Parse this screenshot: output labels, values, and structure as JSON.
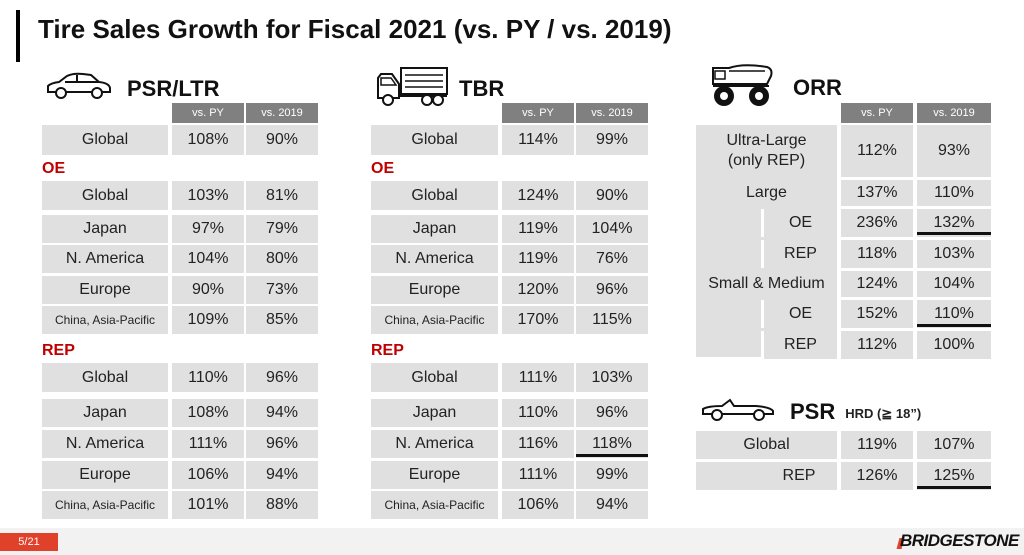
{
  "title": "Tire Sales Growth for Fiscal 2021 (vs. PY / vs. 2019)",
  "headers": {
    "vs_py": "vs. PY",
    "vs_2019": "vs. 2019"
  },
  "groups": {
    "oe": "OE",
    "rep": "REP"
  },
  "psr_ltr": {
    "title": "PSR/LTR",
    "global": [
      "Global",
      "108%",
      "90%"
    ],
    "oe": [
      [
        "Global",
        "103%",
        "81%"
      ],
      [
        "Japan",
        "97%",
        "79%"
      ],
      [
        "N. America",
        "104%",
        "80%"
      ],
      [
        "Europe",
        "90%",
        "73%"
      ],
      [
        "China, Asia-Pacific",
        "109%",
        "85%"
      ]
    ],
    "rep": [
      [
        "Global",
        "110%",
        "96%"
      ],
      [
        "Japan",
        "108%",
        "94%"
      ],
      [
        "N. America",
        "111%",
        "96%"
      ],
      [
        "Europe",
        "106%",
        "94%"
      ],
      [
        "China, Asia-Pacific",
        "101%",
        "88%"
      ]
    ]
  },
  "tbr": {
    "title": "TBR",
    "global": [
      "Global",
      "114%",
      "99%"
    ],
    "oe": [
      [
        "Global",
        "124%",
        "90%"
      ],
      [
        "Japan",
        "119%",
        "104%"
      ],
      [
        "N. America",
        "119%",
        "76%"
      ],
      [
        "Europe",
        "120%",
        "96%"
      ],
      [
        "China, Asia-Pacific",
        "170%",
        "115%"
      ]
    ],
    "rep": [
      [
        "Global",
        "111%",
        "103%"
      ],
      [
        "Japan",
        "110%",
        "96%"
      ],
      [
        "N. America",
        "116%",
        "118%"
      ],
      [
        "Europe",
        "111%",
        "99%"
      ],
      [
        "China, Asia-Pacific",
        "106%",
        "94%"
      ]
    ]
  },
  "orr": {
    "title": "ORR",
    "ultra_large": [
      "Ultra-Large",
      "(only REP)",
      "112%",
      "93%"
    ],
    "large": [
      "Large",
      "137%",
      "110%"
    ],
    "large_oe": [
      "OE",
      "236%",
      "132%"
    ],
    "large_rep": [
      "REP",
      "118%",
      "103%"
    ],
    "small_medium": [
      "Small & Medium",
      "124%",
      "104%"
    ],
    "sm_oe": [
      "OE",
      "152%",
      "110%"
    ],
    "sm_rep": [
      "REP",
      "112%",
      "100%"
    ]
  },
  "psr_hrd": {
    "title": "PSR",
    "subtitle": "HRD (≧ 18”)",
    "global": [
      "Global",
      "119%",
      "107%"
    ],
    "rep": [
      "REP",
      "126%",
      "125%"
    ]
  },
  "footer": {
    "page": "5/21",
    "brand": "BRIDGESTONE"
  },
  "colors": {
    "accent_red": "#c00000",
    "header_gray": "#808080",
    "cell_gray": "#e0e0e0",
    "brand_red": "#e0412a"
  }
}
